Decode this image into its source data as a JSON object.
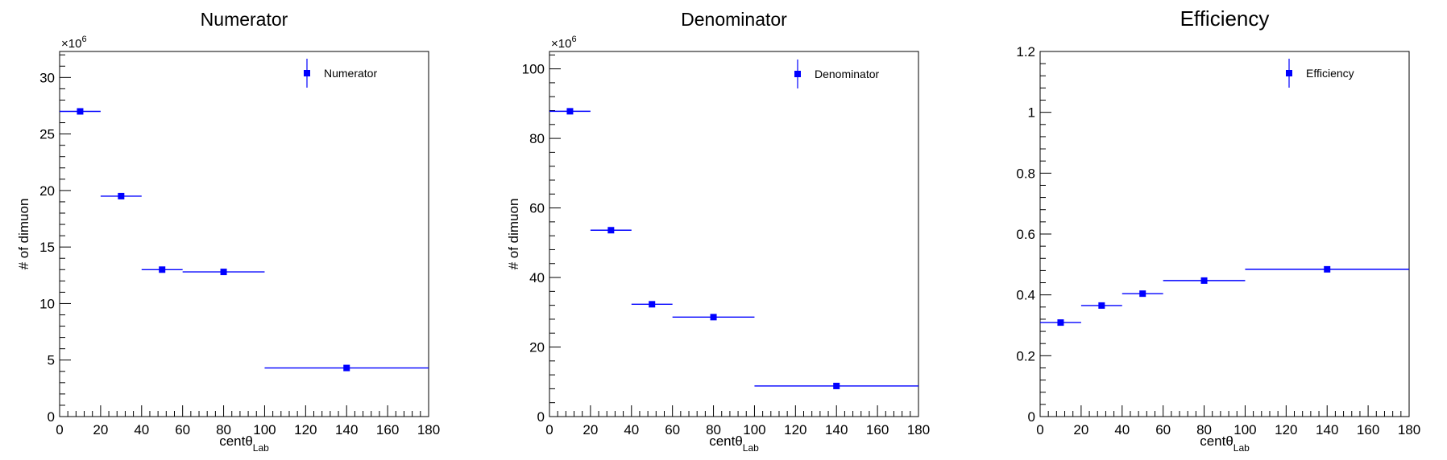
{
  "chart_data": [
    {
      "type": "scatter",
      "title": "Numerator",
      "xlabel": "centθ",
      "xlabel_sub": "Lab",
      "ylabel": "# of dimuon",
      "y_exponent": "×10",
      "y_exponent_power": "6",
      "xlim": [
        0,
        180
      ],
      "ylim": [
        0,
        32.3
      ],
      "xticks": [
        0,
        20,
        40,
        60,
        80,
        100,
        120,
        140,
        160,
        180
      ],
      "yticks": [
        0,
        5,
        10,
        15,
        20,
        25,
        30
      ],
      "grid": false,
      "legend": {
        "position": "top-right",
        "label": "Numerator"
      },
      "series": [
        {
          "name": "Numerator",
          "color": "#0000ff",
          "marker": "square",
          "points": [
            {
              "x": 10,
              "xlow": 0,
              "xhigh": 20,
              "y": 27.0
            },
            {
              "x": 30,
              "xlow": 20,
              "xhigh": 40,
              "y": 19.5
            },
            {
              "x": 50,
              "xlow": 40,
              "xhigh": 60,
              "y": 13.0
            },
            {
              "x": 80,
              "xlow": 60,
              "xhigh": 100,
              "y": 12.8
            },
            {
              "x": 140,
              "xlow": 100,
              "xhigh": 180,
              "y": 4.3
            }
          ]
        }
      ]
    },
    {
      "type": "scatter",
      "title": "Denominator",
      "xlabel": "centθ",
      "xlabel_sub": "Lab",
      "ylabel": "# of dimuon",
      "y_exponent": "×10",
      "y_exponent_power": "6",
      "xlim": [
        0,
        180
      ],
      "ylim": [
        0,
        105
      ],
      "xticks": [
        0,
        20,
        40,
        60,
        80,
        100,
        120,
        140,
        160,
        180
      ],
      "yticks": [
        0,
        20,
        40,
        60,
        80,
        100
      ],
      "grid": false,
      "legend": {
        "position": "top-right",
        "label": "Denominator"
      },
      "series": [
        {
          "name": "Denominator",
          "color": "#0000ff",
          "marker": "square",
          "points": [
            {
              "x": 10,
              "xlow": 0,
              "xhigh": 20,
              "y": 87.8
            },
            {
              "x": 30,
              "xlow": 20,
              "xhigh": 40,
              "y": 53.6
            },
            {
              "x": 50,
              "xlow": 40,
              "xhigh": 60,
              "y": 32.3
            },
            {
              "x": 80,
              "xlow": 60,
              "xhigh": 100,
              "y": 28.6
            },
            {
              "x": 140,
              "xlow": 100,
              "xhigh": 180,
              "y": 8.8
            }
          ]
        }
      ]
    },
    {
      "type": "scatter",
      "title": "Efficiency",
      "xlabel": "centθ",
      "xlabel_sub": "Lab",
      "ylabel": "",
      "y_exponent": "",
      "y_exponent_power": "",
      "xlim": [
        0,
        180
      ],
      "ylim": [
        0,
        1.2
      ],
      "xticks": [
        0,
        20,
        40,
        60,
        80,
        100,
        120,
        140,
        160,
        180
      ],
      "yticks": [
        0,
        0.2,
        0.4,
        0.6,
        0.8,
        1,
        1.2
      ],
      "grid": false,
      "legend": {
        "position": "top-right",
        "label": "Efficiency"
      },
      "series": [
        {
          "name": "Efficiency",
          "color": "#0000ff",
          "marker": "square",
          "points": [
            {
              "x": 10,
              "xlow": 0,
              "xhigh": 20,
              "y": 0.309
            },
            {
              "x": 30,
              "xlow": 20,
              "xhigh": 40,
              "y": 0.365
            },
            {
              "x": 50,
              "xlow": 40,
              "xhigh": 60,
              "y": 0.404
            },
            {
              "x": 80,
              "xlow": 60,
              "xhigh": 100,
              "y": 0.447
            },
            {
              "x": 140,
              "xlow": 100,
              "xhigh": 180,
              "y": 0.484
            }
          ]
        }
      ]
    }
  ]
}
